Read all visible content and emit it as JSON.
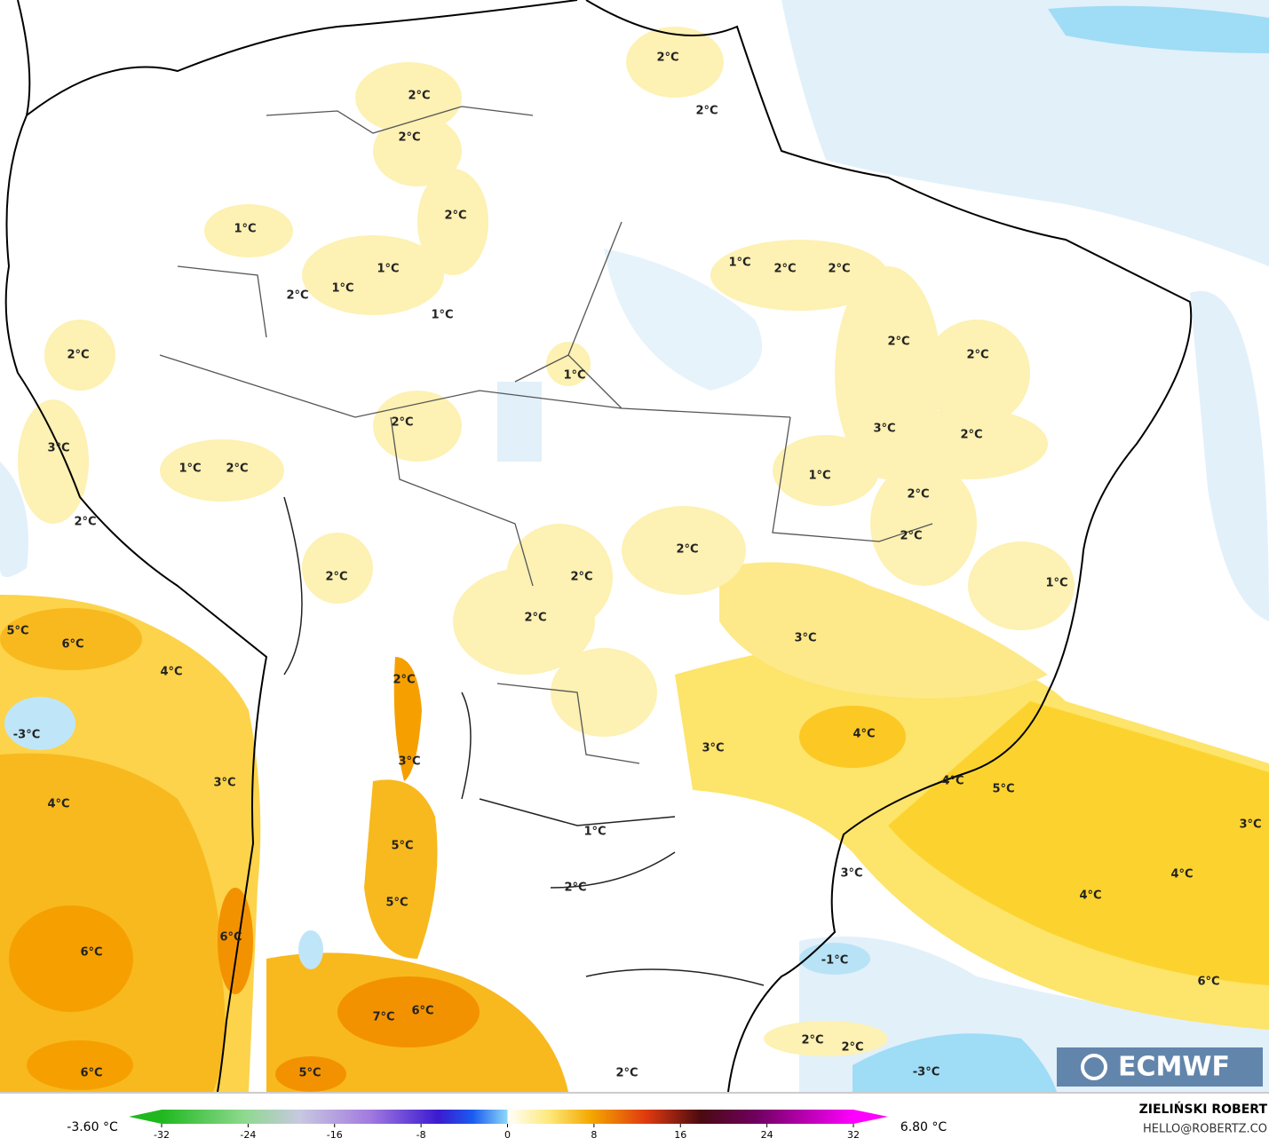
{
  "map": {
    "labels": [
      "2°C",
      "2°C",
      "2°C",
      "2°C",
      "2°C",
      "1°C",
      "1°C",
      "2°C",
      "2°C",
      "1°C",
      "2°C",
      "1°C",
      "1°C",
      "2°C",
      "2°C",
      "2°C",
      "1°C",
      "2°C",
      "3°C",
      "2°C",
      "3°C",
      "1°C",
      "2°C",
      "1°C",
      "2°C",
      "2°C",
      "2°C",
      "2°C",
      "2°C",
      "2°C",
      "1°C",
      "2°C",
      "5°C",
      "6°C",
      "3°C",
      "4°C",
      "2°C",
      "-3°C",
      "4°C",
      "3°C",
      "3°C",
      "3°C",
      "4°C",
      "5°C",
      "4°C",
      "3°C",
      "1°C",
      "5°C",
      "3°C",
      "4°C",
      "2°C",
      "4°C",
      "5°C",
      "6°C",
      "6°C",
      "-1°C",
      "6°C",
      "7°C",
      "6°C",
      "2°C",
      "2°C",
      "-3°C",
      "6°C",
      "5°C",
      "2°C"
    ],
    "logo": "ECMWF"
  },
  "colorbar": {
    "min_label": "-3.60 °C",
    "max_label": "6.80 °C",
    "ticks": [
      -32,
      -24,
      -16,
      -8,
      0,
      8,
      16,
      24,
      32
    ]
  },
  "credit": {
    "author": "ZIELIŃSKI ROBERT",
    "email": "HELLO@ROBERTZ.CO"
  }
}
